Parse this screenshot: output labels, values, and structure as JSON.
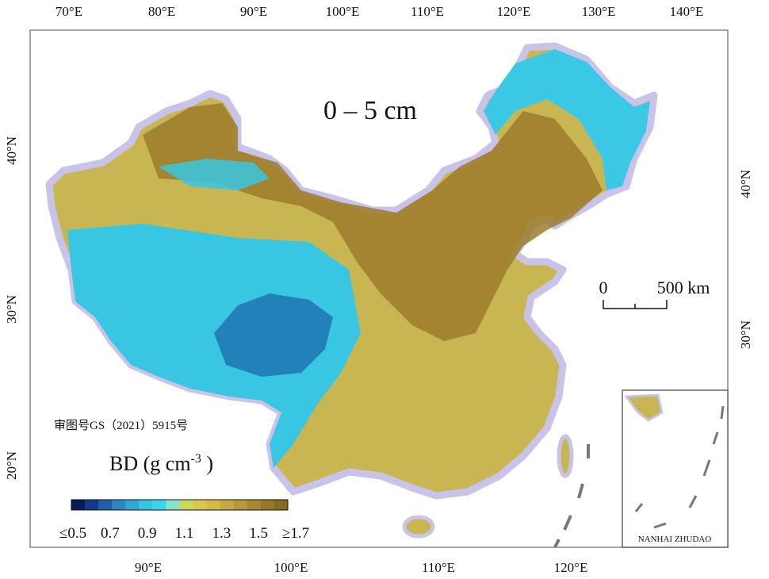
{
  "title": "0 – 5 cm",
  "approval_number": "审图号GS（2021）5915号",
  "legend": {
    "title": [
      "BD (g cm",
      "-3",
      " )"
    ],
    "colors": [
      "#0b1a5c",
      "#123a8a",
      "#1e5fa8",
      "#2a86c4",
      "#2fa8d8",
      "#35c4e4",
      "#3dd5ee",
      "#86e2cc",
      "#c8d860",
      "#d8c850",
      "#d4b848",
      "#c8a840",
      "#b89838",
      "#a88830",
      "#987828",
      "#8a6a20"
    ],
    "labels": [
      "≤0.5",
      "0.7",
      "0.9",
      "1.1",
      "1.3",
      "1.5",
      "≥1.7"
    ]
  },
  "scale_bar": {
    "labels": [
      "0",
      "500 km"
    ]
  },
  "top_axis": [
    "70°E",
    "80°E",
    "90°E",
    "100°E",
    "110°E",
    "120°E",
    "130°E",
    "140°E"
  ],
  "bottom_axis": [
    "90°E",
    "100°E",
    "110°E",
    "120°E"
  ],
  "left_axis": [
    "40°N",
    "30°N",
    "20°N"
  ],
  "right_axis": [
    "40°N",
    "30°N"
  ],
  "inset_label": "NANHAI ZHUDAO"
}
